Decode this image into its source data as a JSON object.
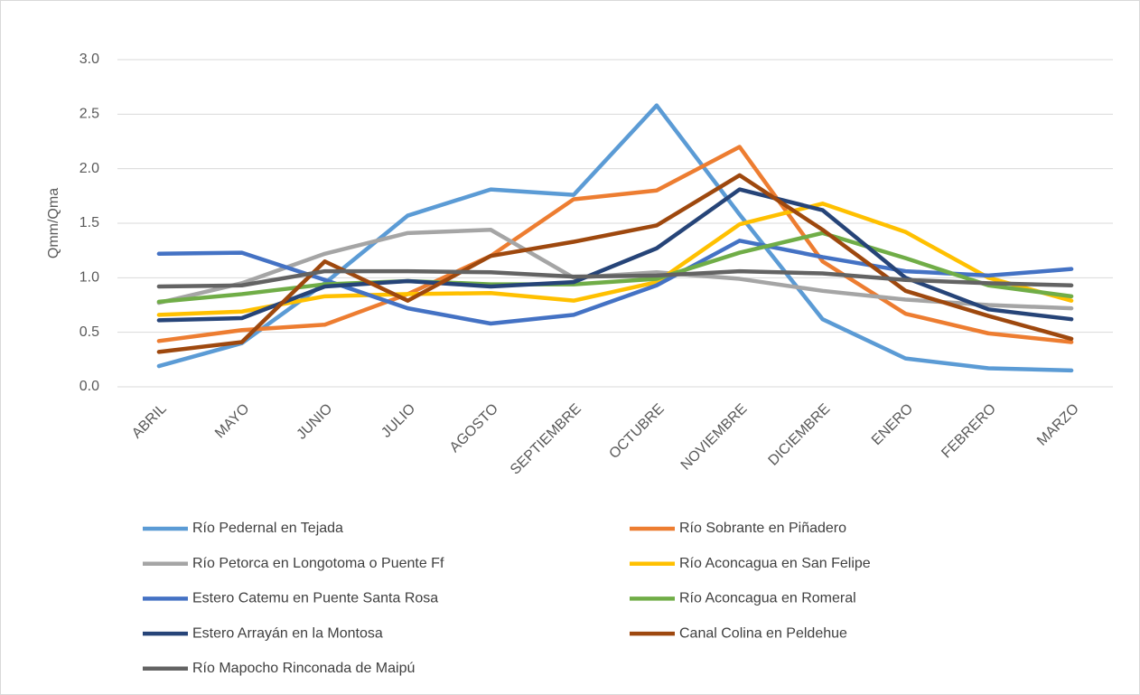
{
  "chart_data": {
    "type": "line",
    "ylabel": "Qmm/Qma",
    "categories": [
      "ABRIL",
      "MAYO",
      "JUNIO",
      "JULIO",
      "AGOSTO",
      "SEPTIEMBRE",
      "OCTUBRE",
      "NOVIEMBRE",
      "DICIEMBRE",
      "ENERO",
      "FEBRERO",
      "MARZO"
    ],
    "ylim": [
      0,
      3
    ],
    "yticks": [
      {
        "value": 0,
        "label": "0.0"
      },
      0.5,
      {
        "value": 1,
        "label": "1.0"
      },
      1.5,
      {
        "value": 2,
        "label": "2.0"
      },
      2.5,
      {
        "value": 3,
        "label": "3.0"
      }
    ],
    "grid": true,
    "legend": "bottom",
    "series": [
      {
        "name": "Río Pedernal en Tejada",
        "color": "#5B9BD5",
        "values": [
          0.19,
          0.4,
          0.95,
          1.57,
          1.81,
          1.76,
          2.58,
          1.58,
          0.62,
          0.26,
          0.17,
          0.15
        ]
      },
      {
        "name": "Río Sobrante en Piñadero",
        "color": "#ED7D31",
        "values": [
          0.42,
          0.52,
          0.57,
          0.85,
          1.2,
          1.72,
          1.8,
          2.2,
          1.15,
          0.67,
          0.49,
          0.41
        ]
      },
      {
        "name": "Río Petorca en Longotoma o Puente Ff",
        "color": "#A5A5A5",
        "values": [
          0.77,
          0.95,
          1.22,
          1.41,
          1.44,
          1.0,
          1.05,
          0.99,
          0.88,
          0.8,
          0.75,
          0.72
        ]
      },
      {
        "name": "Río Aconcagua en San Felipe",
        "color": "#FFC000",
        "values": [
          0.66,
          0.69,
          0.83,
          0.85,
          0.86,
          0.79,
          0.96,
          1.49,
          1.68,
          1.42,
          1.0,
          0.79
        ]
      },
      {
        "name": "Estero Catemu en Puente Santa Rosa",
        "color": "#4472C4",
        "values": [
          1.22,
          1.23,
          0.98,
          0.72,
          0.58,
          0.66,
          0.93,
          1.34,
          1.19,
          1.06,
          1.02,
          1.08
        ]
      },
      {
        "name": "Río Aconcagua en Romeral",
        "color": "#70AD47",
        "values": [
          0.78,
          0.85,
          0.94,
          0.97,
          0.94,
          0.94,
          0.99,
          1.23,
          1.41,
          1.18,
          0.93,
          0.83
        ]
      },
      {
        "name": "Estero Arrayán en la Montosa",
        "color": "#264478",
        "values": [
          0.61,
          0.63,
          0.92,
          0.97,
          0.92,
          0.96,
          1.27,
          1.81,
          1.62,
          1.0,
          0.71,
          0.62
        ]
      },
      {
        "name": "Canal Colina en Peldehue",
        "color": "#9E480E",
        "values": [
          0.32,
          0.41,
          1.15,
          0.79,
          1.2,
          1.33,
          1.48,
          1.94,
          1.44,
          0.88,
          0.65,
          0.44
        ]
      },
      {
        "name": "Río Mapocho Rinconada de Maipú",
        "color": "#636363",
        "values": [
          0.92,
          0.93,
          1.06,
          1.06,
          1.05,
          1.01,
          1.02,
          1.06,
          1.04,
          0.98,
          0.95,
          0.93
        ]
      }
    ]
  }
}
